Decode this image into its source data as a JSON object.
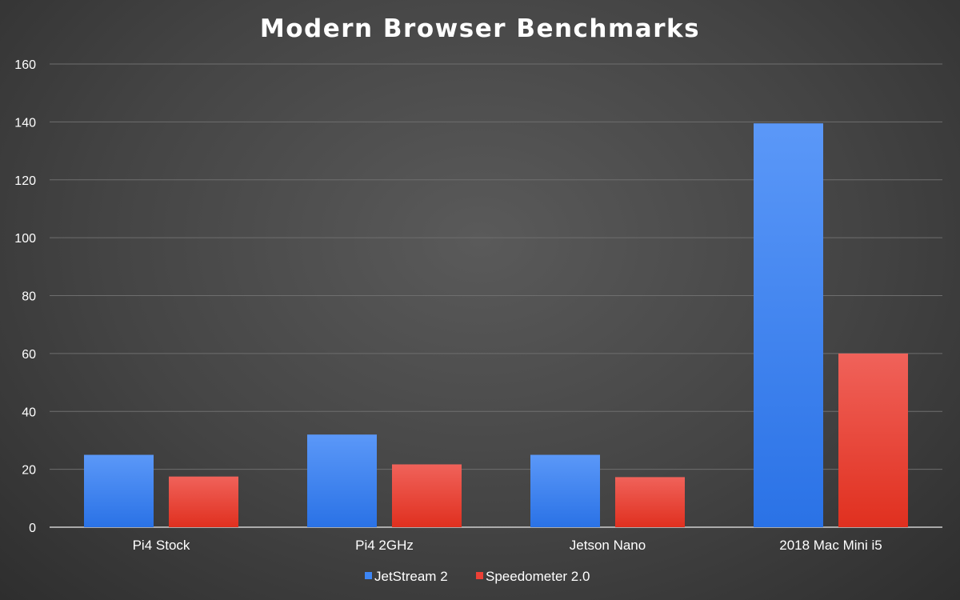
{
  "chart_data": {
    "type": "bar",
    "title": "Modern Browser Benchmarks",
    "xlabel": "",
    "ylabel": "",
    "categories": [
      "Pi4 Stock",
      "Pi4 2GHz",
      "Jetson Nano",
      "2018 Mac Mini i5"
    ],
    "series": [
      {
        "name": "JetStream 2",
        "values": [
          25,
          32,
          25,
          139.5
        ],
        "color": "#3d86f5"
      },
      {
        "name": "Speedometer 2.0",
        "values": [
          17.5,
          21.7,
          17.3,
          60
        ],
        "color": "#ec4036"
      }
    ],
    "ylim": [
      0,
      160
    ],
    "yticks": [
      0,
      20,
      40,
      60,
      80,
      100,
      120,
      140,
      160
    ],
    "grid": true,
    "legend_position": "bottom"
  }
}
